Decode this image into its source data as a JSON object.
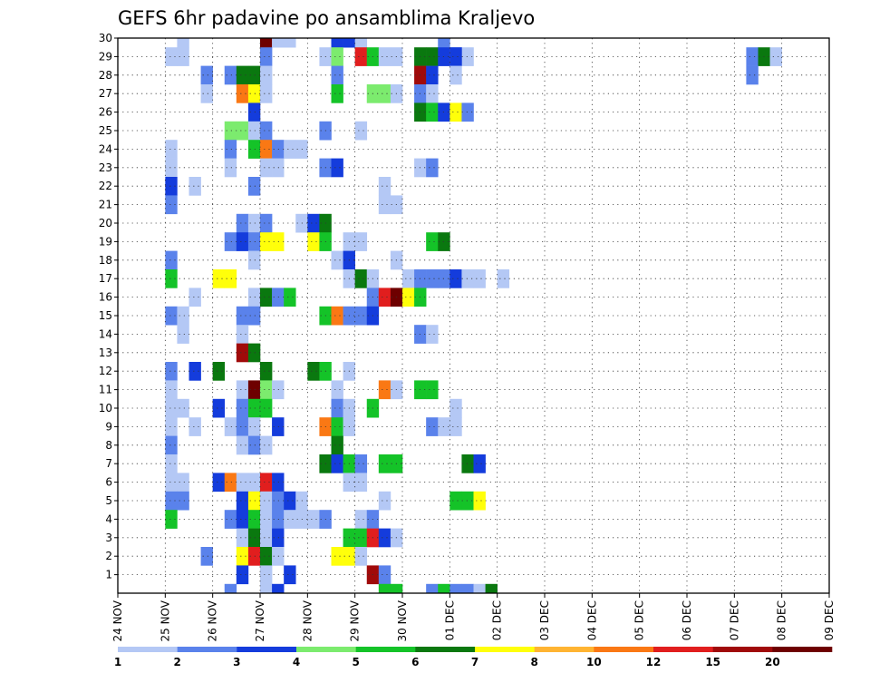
{
  "chart_data": {
    "type": "heatmap",
    "title": "GEFS 6hr padavine po ansamblima Kraljevo",
    "xlabel": "",
    "ylabel": "",
    "x_ticks": [
      "24 NOV",
      "25 NOV",
      "26 NOV",
      "27 NOV",
      "28 NOV",
      "29 NOV",
      "30 NOV",
      "01 DEC",
      "02 DEC",
      "03 DEC",
      "04 DEC",
      "05 DEC",
      "06 DEC",
      "07 DEC",
      "08 DEC",
      "09 DEC"
    ],
    "y_ticks": [
      "1",
      "2",
      "3",
      "4",
      "5",
      "6",
      "7",
      "8",
      "9",
      "10",
      "11",
      "12",
      "13",
      "14",
      "15",
      "16",
      "17",
      "18",
      "19",
      "20",
      "21",
      "22",
      "23",
      "24",
      "25",
      "26",
      "27",
      "28",
      "29",
      "30"
    ],
    "x_steps_per_day": 4,
    "x_range_steps": [
      0,
      60
    ],
    "y_range": [
      0,
      30
    ],
    "grid": true,
    "colorbar": {
      "placement": "bottom",
      "labels": [
        "1",
        "2",
        "3",
        "4",
        "5",
        "6",
        "7",
        "8",
        "10",
        "12",
        "15",
        "20"
      ],
      "colors": [
        "#b4c8f5",
        "#5a82eb",
        "#143cdc",
        "#7ceb6e",
        "#14c328",
        "#0a780f",
        "#ffff0a",
        "#ffb432",
        "#fa7814",
        "#e11e1e",
        "#a00a0a",
        "#6e0000"
      ]
    },
    "cells_note": "each cell: [member, time_step, color_class]; time_step 0 = 24 NOV 00UTC, 4 steps per day; color_class indexes colorbar.colors",
    "cells": [
      [
        30,
        5,
        0
      ],
      [
        30,
        12,
        11
      ],
      [
        30,
        13,
        0
      ],
      [
        30,
        14,
        0
      ],
      [
        30,
        18,
        0
      ],
      [
        30,
        18,
        2
      ],
      [
        30,
        19,
        2
      ],
      [
        30,
        20,
        0
      ],
      [
        30,
        27,
        1
      ],
      [
        29,
        4,
        0
      ],
      [
        29,
        5,
        0
      ],
      [
        29,
        12,
        1
      ],
      [
        29,
        17,
        0
      ],
      [
        29,
        18,
        3
      ],
      [
        29,
        20,
        9
      ],
      [
        29,
        21,
        4
      ],
      [
        29,
        22,
        0
      ],
      [
        29,
        23,
        0
      ],
      [
        29,
        25,
        5
      ],
      [
        29,
        26,
        5
      ],
      [
        29,
        27,
        2
      ],
      [
        29,
        28,
        1
      ],
      [
        29,
        29,
        0
      ],
      [
        29,
        28,
        2
      ],
      [
        29,
        53,
        1
      ],
      [
        29,
        54,
        5
      ],
      [
        29,
        55,
        0
      ],
      [
        28,
        7,
        1
      ],
      [
        28,
        9,
        1
      ],
      [
        28,
        10,
        5
      ],
      [
        28,
        11,
        5
      ],
      [
        28,
        12,
        0
      ],
      [
        28,
        18,
        1
      ],
      [
        28,
        25,
        10
      ],
      [
        28,
        26,
        2
      ],
      [
        28,
        28,
        0
      ],
      [
        28,
        53,
        1
      ],
      [
        27,
        7,
        0
      ],
      [
        27,
        10,
        8
      ],
      [
        27,
        11,
        6
      ],
      [
        27,
        12,
        0
      ],
      [
        27,
        18,
        4
      ],
      [
        27,
        21,
        3
      ],
      [
        27,
        22,
        3
      ],
      [
        27,
        23,
        0
      ],
      [
        27,
        25,
        1
      ],
      [
        27,
        26,
        0
      ],
      [
        26,
        11,
        2
      ],
      [
        26,
        25,
        5
      ],
      [
        26,
        26,
        4
      ],
      [
        26,
        27,
        2
      ],
      [
        26,
        28,
        6
      ],
      [
        26,
        29,
        1
      ],
      [
        25,
        9,
        3
      ],
      [
        25,
        10,
        3
      ],
      [
        25,
        11,
        0
      ],
      [
        25,
        12,
        1
      ],
      [
        25,
        17,
        1
      ],
      [
        25,
        20,
        0
      ],
      [
        24,
        4,
        0
      ],
      [
        24,
        9,
        1
      ],
      [
        24,
        11,
        4
      ],
      [
        24,
        12,
        8
      ],
      [
        24,
        13,
        1
      ],
      [
        24,
        14,
        0
      ],
      [
        24,
        15,
        0
      ],
      [
        23,
        4,
        0
      ],
      [
        23,
        9,
        0
      ],
      [
        23,
        12,
        0
      ],
      [
        23,
        13,
        0
      ],
      [
        23,
        17,
        1
      ],
      [
        23,
        18,
        2
      ],
      [
        23,
        25,
        0
      ],
      [
        23,
        26,
        1
      ],
      [
        22,
        4,
        2
      ],
      [
        22,
        6,
        0
      ],
      [
        22,
        11,
        1
      ],
      [
        22,
        22,
        0
      ],
      [
        21,
        4,
        1
      ],
      [
        21,
        22,
        0
      ],
      [
        21,
        23,
        0
      ],
      [
        20,
        10,
        1
      ],
      [
        20,
        11,
        0
      ],
      [
        20,
        12,
        1
      ],
      [
        20,
        15,
        0
      ],
      [
        20,
        16,
        2
      ],
      [
        20,
        17,
        5
      ],
      [
        19,
        9,
        1
      ],
      [
        19,
        10,
        2
      ],
      [
        19,
        11,
        1
      ],
      [
        19,
        12,
        6
      ],
      [
        19,
        13,
        6
      ],
      [
        19,
        16,
        6
      ],
      [
        19,
        17,
        4
      ],
      [
        19,
        19,
        0
      ],
      [
        19,
        20,
        0
      ],
      [
        19,
        26,
        4
      ],
      [
        19,
        27,
        5
      ],
      [
        18,
        4,
        1
      ],
      [
        18,
        11,
        0
      ],
      [
        18,
        18,
        0
      ],
      [
        18,
        19,
        2
      ],
      [
        18,
        23,
        0
      ],
      [
        17,
        4,
        4
      ],
      [
        17,
        8,
        6
      ],
      [
        17,
        9,
        6
      ],
      [
        17,
        19,
        0
      ],
      [
        17,
        20,
        5
      ],
      [
        17,
        21,
        0
      ],
      [
        17,
        24,
        0
      ],
      [
        17,
        25,
        1
      ],
      [
        17,
        26,
        1
      ],
      [
        17,
        27,
        1
      ],
      [
        17,
        28,
        2
      ],
      [
        17,
        29,
        0
      ],
      [
        17,
        30,
        0
      ],
      [
        17,
        32,
        0
      ],
      [
        16,
        6,
        0
      ],
      [
        16,
        11,
        0
      ],
      [
        16,
        12,
        5
      ],
      [
        16,
        13,
        1
      ],
      [
        16,
        14,
        4
      ],
      [
        16,
        21,
        1
      ],
      [
        16,
        22,
        9
      ],
      [
        16,
        23,
        11
      ],
      [
        16,
        24,
        6
      ],
      [
        16,
        25,
        4
      ],
      [
        15,
        4,
        1
      ],
      [
        15,
        5,
        0
      ],
      [
        15,
        10,
        1
      ],
      [
        15,
        11,
        1
      ],
      [
        15,
        17,
        4
      ],
      [
        15,
        18,
        8
      ],
      [
        15,
        19,
        1
      ],
      [
        15,
        20,
        1
      ],
      [
        15,
        21,
        2
      ],
      [
        14,
        5,
        0
      ],
      [
        14,
        10,
        0
      ],
      [
        14,
        25,
        1
      ],
      [
        14,
        26,
        0
      ],
      [
        13,
        10,
        10
      ],
      [
        13,
        11,
        5
      ],
      [
        12,
        4,
        1
      ],
      [
        12,
        6,
        2
      ],
      [
        12,
        8,
        5
      ],
      [
        12,
        12,
        5
      ],
      [
        12,
        16,
        5
      ],
      [
        12,
        17,
        4
      ],
      [
        12,
        19,
        0
      ],
      [
        11,
        4,
        0
      ],
      [
        11,
        10,
        0
      ],
      [
        11,
        11,
        11
      ],
      [
        11,
        12,
        3
      ],
      [
        11,
        13,
        0
      ],
      [
        11,
        18,
        0
      ],
      [
        11,
        22,
        8
      ],
      [
        11,
        23,
        0
      ],
      [
        11,
        25,
        4
      ],
      [
        11,
        26,
        4
      ],
      [
        10,
        4,
        0
      ],
      [
        10,
        5,
        0
      ],
      [
        10,
        8,
        2
      ],
      [
        10,
        10,
        1
      ],
      [
        10,
        11,
        4
      ],
      [
        10,
        12,
        4
      ],
      [
        10,
        18,
        1
      ],
      [
        10,
        19,
        0
      ],
      [
        10,
        21,
        4
      ],
      [
        10,
        28,
        0
      ],
      [
        9,
        4,
        0
      ],
      [
        9,
        6,
        0
      ],
      [
        9,
        9,
        0
      ],
      [
        9,
        10,
        1
      ],
      [
        9,
        11,
        0
      ],
      [
        9,
        13,
        2
      ],
      [
        9,
        17,
        8
      ],
      [
        9,
        18,
        4
      ],
      [
        9,
        19,
        0
      ],
      [
        9,
        26,
        1
      ],
      [
        9,
        27,
        0
      ],
      [
        9,
        28,
        0
      ],
      [
        8,
        4,
        1
      ],
      [
        8,
        10,
        0
      ],
      [
        8,
        11,
        1
      ],
      [
        8,
        12,
        0
      ],
      [
        8,
        18,
        5
      ],
      [
        7,
        4,
        0
      ],
      [
        7,
        17,
        5
      ],
      [
        7,
        18,
        2
      ],
      [
        7,
        19,
        4
      ],
      [
        7,
        20,
        1
      ],
      [
        7,
        22,
        4
      ],
      [
        7,
        23,
        4
      ],
      [
        7,
        29,
        5
      ],
      [
        7,
        30,
        2
      ],
      [
        6,
        4,
        0
      ],
      [
        6,
        5,
        0
      ],
      [
        6,
        8,
        2
      ],
      [
        6,
        9,
        8
      ],
      [
        6,
        10,
        0
      ],
      [
        6,
        11,
        0
      ],
      [
        6,
        12,
        9
      ],
      [
        6,
        13,
        2
      ],
      [
        6,
        19,
        0
      ],
      [
        6,
        20,
        0
      ],
      [
        5,
        4,
        1
      ],
      [
        5,
        5,
        1
      ],
      [
        5,
        10,
        2
      ],
      [
        5,
        11,
        6
      ],
      [
        5,
        12,
        0
      ],
      [
        5,
        13,
        1
      ],
      [
        5,
        14,
        2
      ],
      [
        5,
        15,
        0
      ],
      [
        5,
        22,
        0
      ],
      [
        5,
        28,
        4
      ],
      [
        5,
        29,
        4
      ],
      [
        5,
        30,
        6
      ],
      [
        4,
        4,
        4
      ],
      [
        4,
        9,
        1
      ],
      [
        4,
        10,
        2
      ],
      [
        4,
        11,
        4
      ],
      [
        4,
        12,
        0
      ],
      [
        4,
        13,
        1
      ],
      [
        4,
        14,
        0
      ],
      [
        4,
        15,
        0
      ],
      [
        4,
        16,
        0
      ],
      [
        4,
        17,
        1
      ],
      [
        4,
        20,
        0
      ],
      [
        4,
        21,
        1
      ],
      [
        3,
        10,
        0
      ],
      [
        3,
        11,
        5
      ],
      [
        3,
        12,
        0
      ],
      [
        3,
        13,
        2
      ],
      [
        3,
        19,
        4
      ],
      [
        3,
        20,
        4
      ],
      [
        3,
        21,
        9
      ],
      [
        3,
        22,
        2
      ],
      [
        3,
        23,
        0
      ],
      [
        2,
        7,
        1
      ],
      [
        2,
        10,
        6
      ],
      [
        2,
        11,
        9
      ],
      [
        2,
        12,
        5
      ],
      [
        2,
        13,
        0
      ],
      [
        2,
        18,
        6
      ],
      [
        2,
        19,
        6
      ],
      [
        2,
        20,
        0
      ],
      [
        1,
        10,
        2
      ],
      [
        1,
        12,
        0
      ],
      [
        1,
        14,
        2
      ],
      [
        1,
        21,
        10
      ],
      [
        1,
        22,
        1
      ],
      [
        0,
        9,
        1
      ],
      [
        0,
        12,
        0
      ],
      [
        0,
        13,
        2
      ],
      [
        0,
        22,
        4
      ],
      [
        0,
        23,
        4
      ],
      [
        0,
        26,
        1
      ],
      [
        0,
        27,
        4
      ],
      [
        0,
        28,
        1
      ],
      [
        0,
        29,
        1
      ],
      [
        0,
        30,
        0
      ],
      [
        0,
        31,
        5
      ]
    ]
  }
}
